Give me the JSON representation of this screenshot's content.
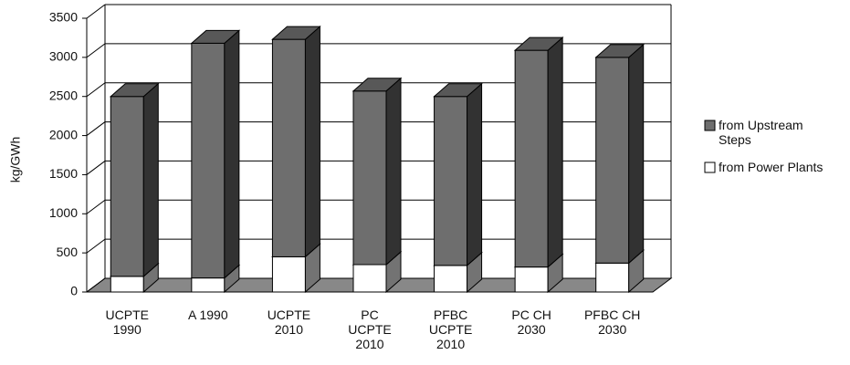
{
  "chart_data": {
    "type": "bar3d_stacked",
    "ylabel": "kg/GWh",
    "categories": [
      "UCPTE 1990",
      "A 1990",
      "UCPTE 2010",
      "PC UCPTE 2010",
      "PFBC UCPTE 2010",
      "PC CH 2030",
      "PFBC CH 2030"
    ],
    "series": [
      {
        "name": "from Power Plants",
        "color": "#ffffff",
        "values": [
          200,
          180,
          450,
          350,
          340,
          320,
          370
        ]
      },
      {
        "name": "from Upstream Steps",
        "color": "#6e6e6e",
        "values": [
          2300,
          3000,
          2780,
          2220,
          2160,
          2770,
          2630
        ]
      }
    ],
    "legend_order": [
      1,
      0
    ],
    "ylim": [
      0,
      3500
    ],
    "yticks": [
      0,
      500,
      1000,
      1500,
      2000,
      2500,
      3000,
      3500
    ],
    "grid": true
  }
}
